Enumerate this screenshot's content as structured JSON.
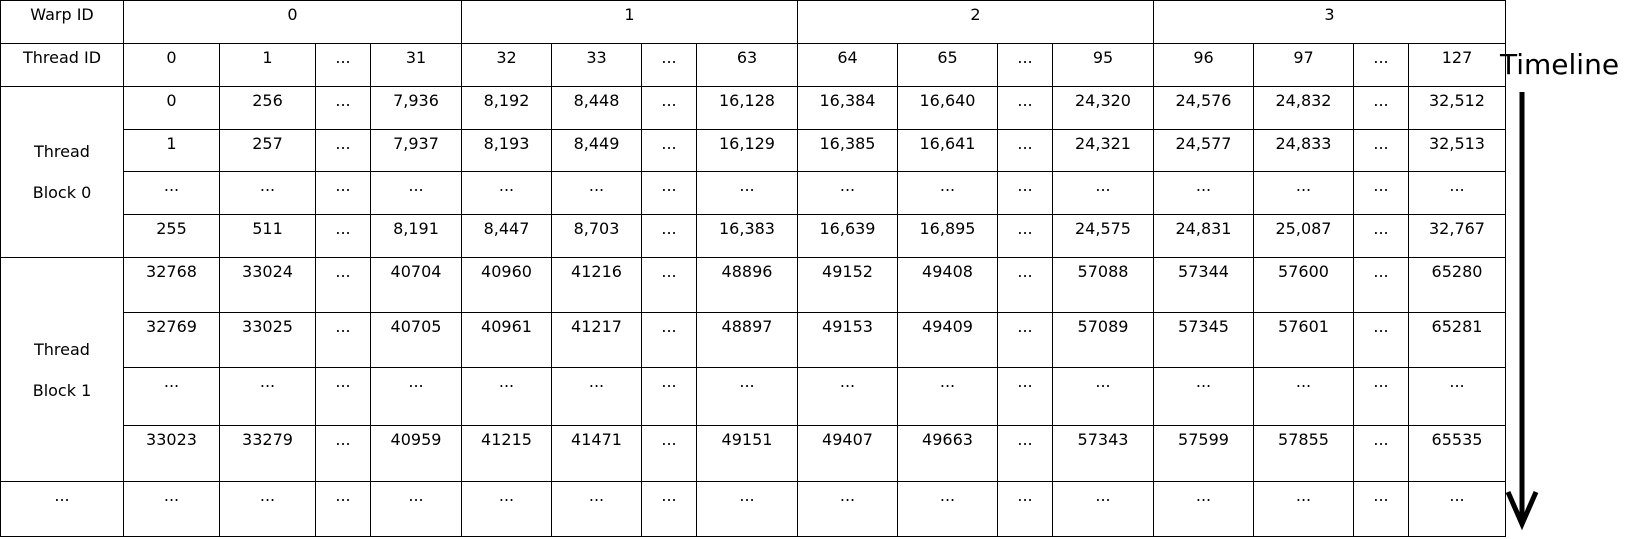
{
  "header": {
    "warp_label": "Warp ID",
    "warps": [
      "0",
      "1",
      "2",
      "3"
    ],
    "thread_label": "Thread ID",
    "threads": [
      "0",
      "1",
      "...",
      "31",
      "32",
      "33",
      "...",
      "63",
      "64",
      "65",
      "...",
      "95",
      "96",
      "97",
      "...",
      "127"
    ]
  },
  "blocks": [
    {
      "label_line1": "Thread",
      "label_line2": "Block 0",
      "rows": [
        [
          "0",
          "256",
          "...",
          "7,936",
          "8,192",
          "8,448",
          "...",
          "16,128",
          "16,384",
          "16,640",
          "...",
          "24,320",
          "24,576",
          "24,832",
          "...",
          "32,512"
        ],
        [
          "1",
          "257",
          "...",
          "7,937",
          "8,193",
          "8,449",
          "...",
          "16,129",
          "16,385",
          "16,641",
          "...",
          "24,321",
          "24,577",
          "24,833",
          "...",
          "32,513"
        ],
        [
          "...",
          "...",
          "...",
          "...",
          "...",
          "...",
          "...",
          "...",
          "...",
          "...",
          "...",
          "...",
          "...",
          "...",
          "...",
          "..."
        ],
        [
          "255",
          "511",
          "...",
          "8,191",
          "8,447",
          "8,703",
          "...",
          "16,383",
          "16,639",
          "16,895",
          "...",
          "24,575",
          "24,831",
          "25,087",
          "...",
          "32,767"
        ]
      ]
    },
    {
      "label_line1": "Thread",
      "label_line2": "Block 1",
      "rows": [
        [
          "32768",
          "33024",
          "...",
          "40704",
          "40960",
          "41216",
          "...",
          "48896",
          "49152",
          "49408",
          "...",
          "57088",
          "57344",
          "57600",
          "...",
          "65280"
        ],
        [
          "32769",
          "33025",
          "...",
          "40705",
          "40961",
          "41217",
          "...",
          "48897",
          "49153",
          "49409",
          "...",
          "57089",
          "57345",
          "57601",
          "...",
          "65281"
        ],
        [
          "...",
          "...",
          "...",
          "...",
          "...",
          "...",
          "...",
          "...",
          "...",
          "...",
          "...",
          "...",
          "...",
          "...",
          "...",
          "..."
        ],
        [
          "33023",
          "33279",
          "...",
          "40959",
          "41215",
          "41471",
          "...",
          "49151",
          "49407",
          "49663",
          "...",
          "57343",
          "57599",
          "57855",
          "...",
          "65535"
        ]
      ]
    }
  ],
  "last_row": {
    "label": "...",
    "cells": [
      "...",
      "...",
      "...",
      "...",
      "...",
      "...",
      "...",
      "...",
      "...",
      "...",
      "...",
      "...",
      "...",
      "...",
      "...",
      "..."
    ]
  },
  "timeline": {
    "label": "Timeline",
    "arrow_icon": "down-arrow-icon"
  }
}
